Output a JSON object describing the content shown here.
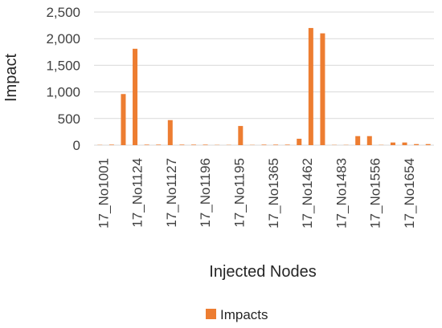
{
  "chart_data": {
    "type": "bar",
    "xlabel": "Injected Nodes",
    "ylabel": "Impact",
    "ylim": [
      0,
      2500
    ],
    "yticks": [
      "0",
      "500",
      "1,000",
      "1,500",
      "2,000",
      "2,500"
    ],
    "grid": true,
    "legend_position": "bottom",
    "tick_labels": [
      "17_No1001",
      "17_No1124",
      "17_No1127",
      "17_No1196",
      "17_No1195",
      "17_No1365",
      "17_No1462",
      "17_No1483",
      "17_No1556",
      "17_No1654"
    ],
    "series": [
      {
        "name": "Impacts",
        "color": "#ed7d31",
        "values": [
          5,
          10,
          960,
          1810,
          10,
          10,
          470,
          10,
          10,
          10,
          5,
          5,
          360,
          5,
          10,
          10,
          10,
          120,
          2200,
          2100,
          5,
          5,
          170,
          170,
          5,
          50,
          50,
          20,
          20
        ]
      }
    ]
  }
}
